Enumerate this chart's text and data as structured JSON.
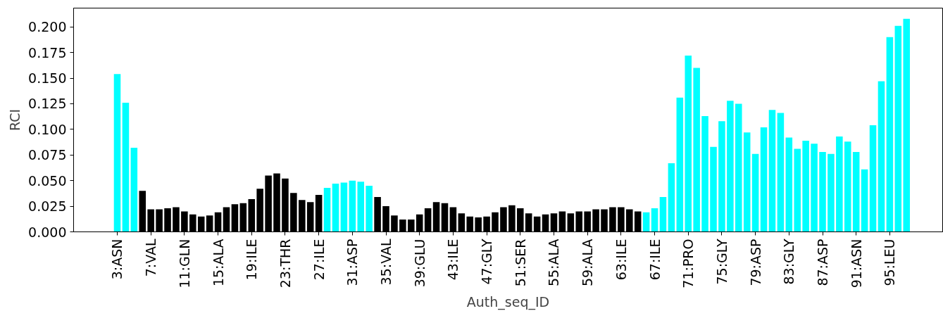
{
  "chart_data": {
    "type": "bar",
    "xlabel": "Auth_seq_ID",
    "ylabel": "RCI",
    "categories": [
      "3:ASN",
      null,
      null,
      null,
      "7:VAL",
      null,
      null,
      null,
      "11:GLN",
      null,
      null,
      null,
      "15:ALA",
      null,
      null,
      null,
      "19:ILE",
      null,
      null,
      null,
      "23:THR",
      null,
      null,
      null,
      "27:ILE",
      null,
      null,
      null,
      "31:ASP",
      null,
      null,
      null,
      "35:VAL",
      null,
      null,
      null,
      "39:GLU",
      null,
      null,
      null,
      "43:ILE",
      null,
      null,
      null,
      "47:GLY",
      null,
      null,
      null,
      "51:SER",
      null,
      null,
      null,
      "55:ALA",
      null,
      null,
      null,
      "59:ALA",
      null,
      null,
      null,
      "63:ILE",
      null,
      null,
      null,
      "67:ILE",
      null,
      null,
      null,
      "71:PRO",
      null,
      null,
      null,
      "75:GLY",
      null,
      null,
      null,
      "79:ASP",
      null,
      null,
      null,
      "83:GLY",
      null,
      null,
      null,
      "87:ASP",
      null,
      null,
      null,
      "91:ASN",
      null,
      null,
      null,
      "95:LEU",
      null,
      null
    ],
    "values": [
      0.154,
      0.126,
      0.082,
      0.04,
      0.022,
      0.022,
      0.023,
      0.024,
      0.02,
      0.017,
      0.015,
      0.016,
      0.019,
      0.024,
      0.027,
      0.028,
      0.032,
      0.042,
      0.055,
      0.057,
      0.052,
      0.038,
      0.031,
      0.029,
      0.036,
      0.043,
      0.047,
      0.048,
      0.05,
      0.049,
      0.045,
      0.034,
      0.025,
      0.016,
      0.012,
      0.012,
      0.017,
      0.023,
      0.029,
      0.028,
      0.024,
      0.018,
      0.015,
      0.014,
      0.015,
      0.019,
      0.024,
      0.026,
      0.023,
      0.018,
      0.015,
      0.017,
      0.018,
      0.02,
      0.018,
      0.02,
      0.02,
      0.022,
      0.022,
      0.024,
      0.024,
      0.022,
      0.02,
      0.019,
      0.023,
      0.034,
      0.067,
      0.131,
      0.172,
      0.16,
      0.113,
      0.083,
      0.108,
      0.128,
      0.125,
      0.097,
      0.076,
      0.102,
      0.119,
      0.116,
      0.092,
      0.081,
      0.089,
      0.086,
      0.078,
      0.076,
      0.093,
      0.088,
      0.078,
      0.061,
      0.104,
      0.147,
      0.19,
      0.201,
      0.208
    ],
    "colors": [
      "#00ffff",
      "#00ffff",
      "#00ffff",
      "#000000",
      "#000000",
      "#000000",
      "#000000",
      "#000000",
      "#000000",
      "#000000",
      "#000000",
      "#000000",
      "#000000",
      "#000000",
      "#000000",
      "#000000",
      "#000000",
      "#000000",
      "#000000",
      "#000000",
      "#000000",
      "#000000",
      "#000000",
      "#000000",
      "#000000",
      "#00ffff",
      "#00ffff",
      "#00ffff",
      "#00ffff",
      "#00ffff",
      "#00ffff",
      "#000000",
      "#000000",
      "#000000",
      "#000000",
      "#000000",
      "#000000",
      "#000000",
      "#000000",
      "#000000",
      "#000000",
      "#000000",
      "#000000",
      "#000000",
      "#000000",
      "#000000",
      "#000000",
      "#000000",
      "#000000",
      "#000000",
      "#000000",
      "#000000",
      "#000000",
      "#000000",
      "#000000",
      "#000000",
      "#000000",
      "#000000",
      "#000000",
      "#000000",
      "#000000",
      "#000000",
      "#000000",
      "#00ffff",
      "#00ffff",
      "#00ffff",
      "#00ffff",
      "#00ffff",
      "#00ffff",
      "#00ffff",
      "#00ffff",
      "#00ffff",
      "#00ffff",
      "#00ffff",
      "#00ffff",
      "#00ffff",
      "#00ffff",
      "#00ffff",
      "#00ffff",
      "#00ffff",
      "#00ffff",
      "#00ffff",
      "#00ffff",
      "#00ffff",
      "#00ffff",
      "#00ffff",
      "#00ffff",
      "#00ffff",
      "#00ffff",
      "#00ffff",
      "#00ffff",
      "#00ffff",
      "#00ffff",
      "#00ffff",
      "#00ffff"
    ],
    "ylim": [
      0,
      0.2184
    ],
    "yticks": [
      {
        "value": 0,
        "label": "0.000"
      },
      {
        "value": 0.025,
        "label": "0.025"
      },
      {
        "value": 0.05,
        "label": "0.050"
      },
      {
        "value": 0.075,
        "label": "0.075"
      },
      {
        "value": 0.1,
        "label": "0.100"
      },
      {
        "value": 0.125,
        "label": "0.125"
      },
      {
        "value": 0.15,
        "label": "0.150"
      },
      {
        "value": 0.175,
        "label": "0.175"
      },
      {
        "value": 0.2,
        "label": "0.200"
      }
    ],
    "grid": false
  }
}
